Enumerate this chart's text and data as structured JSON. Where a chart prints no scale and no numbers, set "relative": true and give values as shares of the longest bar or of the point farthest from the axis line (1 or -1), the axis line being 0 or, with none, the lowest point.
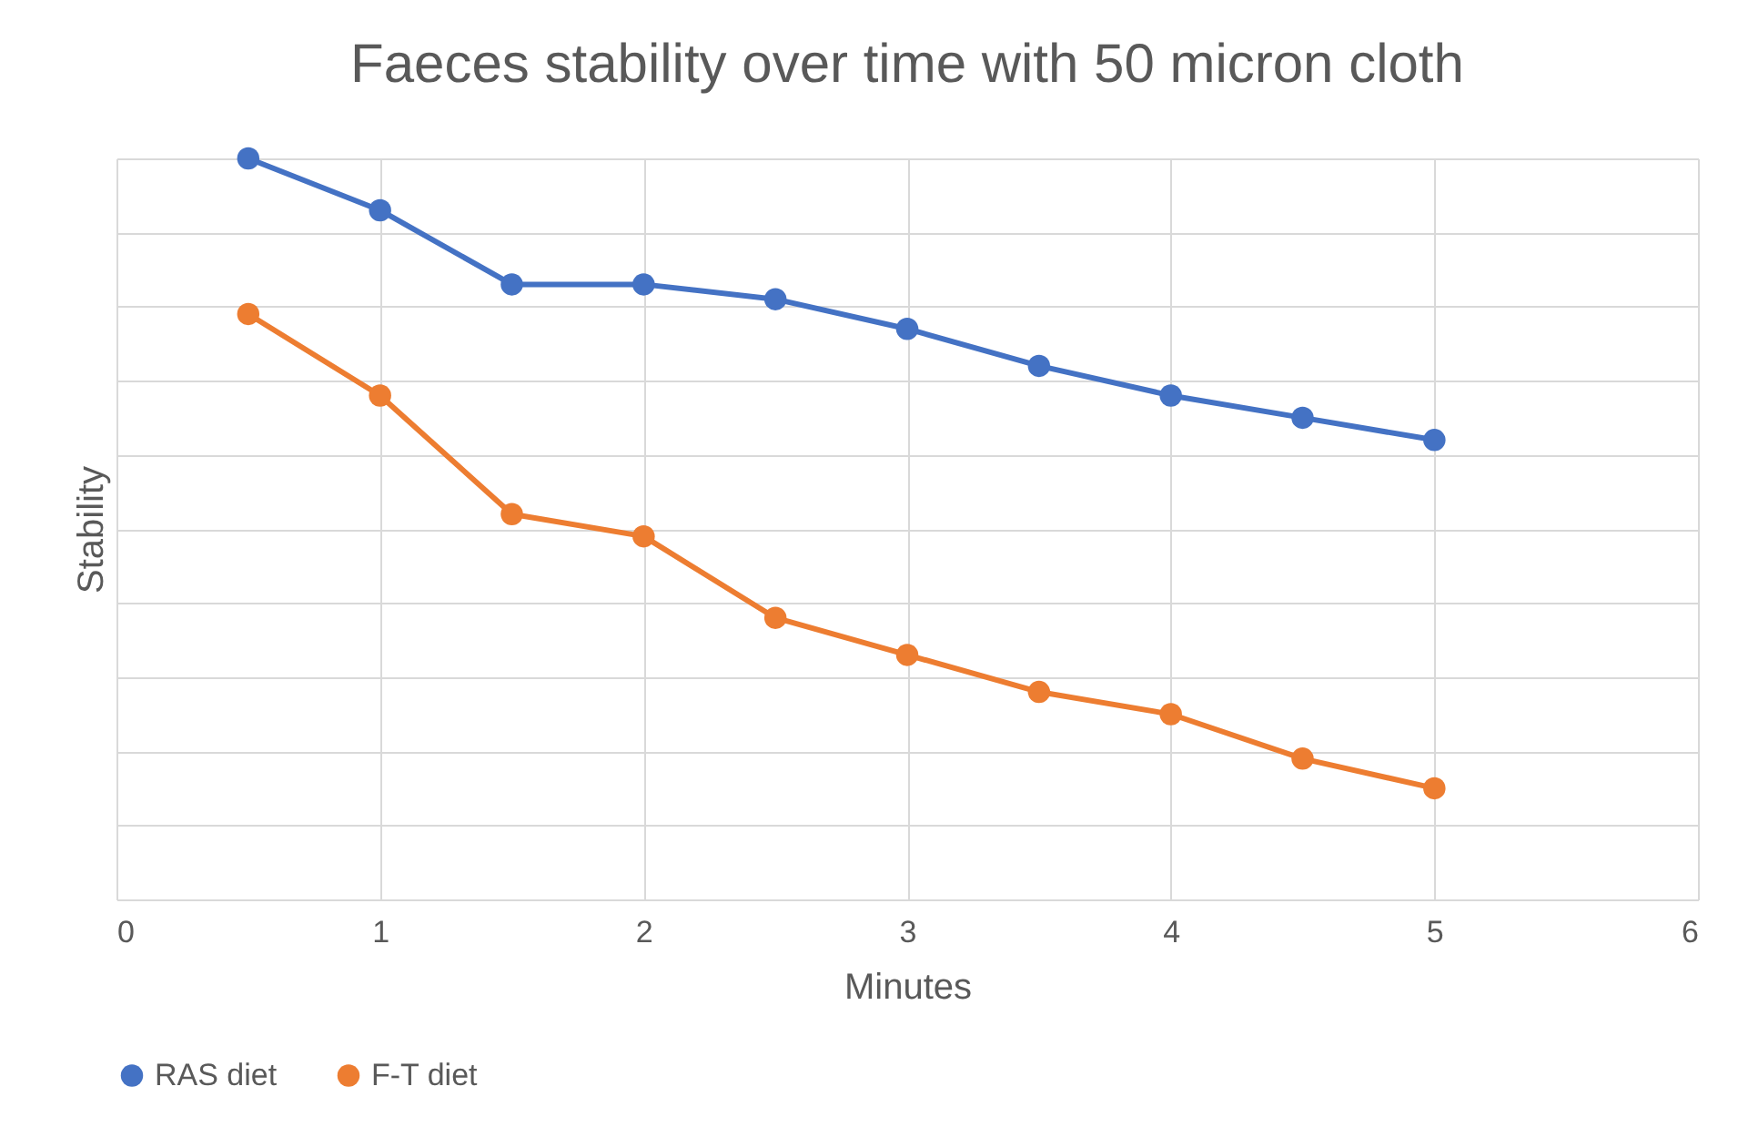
{
  "chart_data": {
    "type": "line",
    "title": "Faeces stability over time with 50 micron cloth",
    "xlabel": "Minutes",
    "ylabel": "Stability",
    "relative": true,
    "x": [
      0.5,
      1,
      1.5,
      2,
      2.5,
      3,
      3.5,
      4,
      4.5,
      5
    ],
    "xlim": [
      0,
      6
    ],
    "xticks": [
      0,
      1,
      2,
      3,
      4,
      5,
      6
    ],
    "series": [
      {
        "name": "RAS diet",
        "color": "#4472c4",
        "values": [
          1.0,
          0.93,
          0.83,
          0.83,
          0.81,
          0.77,
          0.72,
          0.68,
          0.65,
          0.62
        ]
      },
      {
        "name": "F-T diet",
        "color": "#ed7d31",
        "values": [
          0.79,
          0.68,
          0.52,
          0.49,
          0.38,
          0.33,
          0.28,
          0.25,
          0.19,
          0.15
        ]
      }
    ],
    "grid": true,
    "legend": "bottom",
    "marker": "circle",
    "line_style": "solid"
  }
}
